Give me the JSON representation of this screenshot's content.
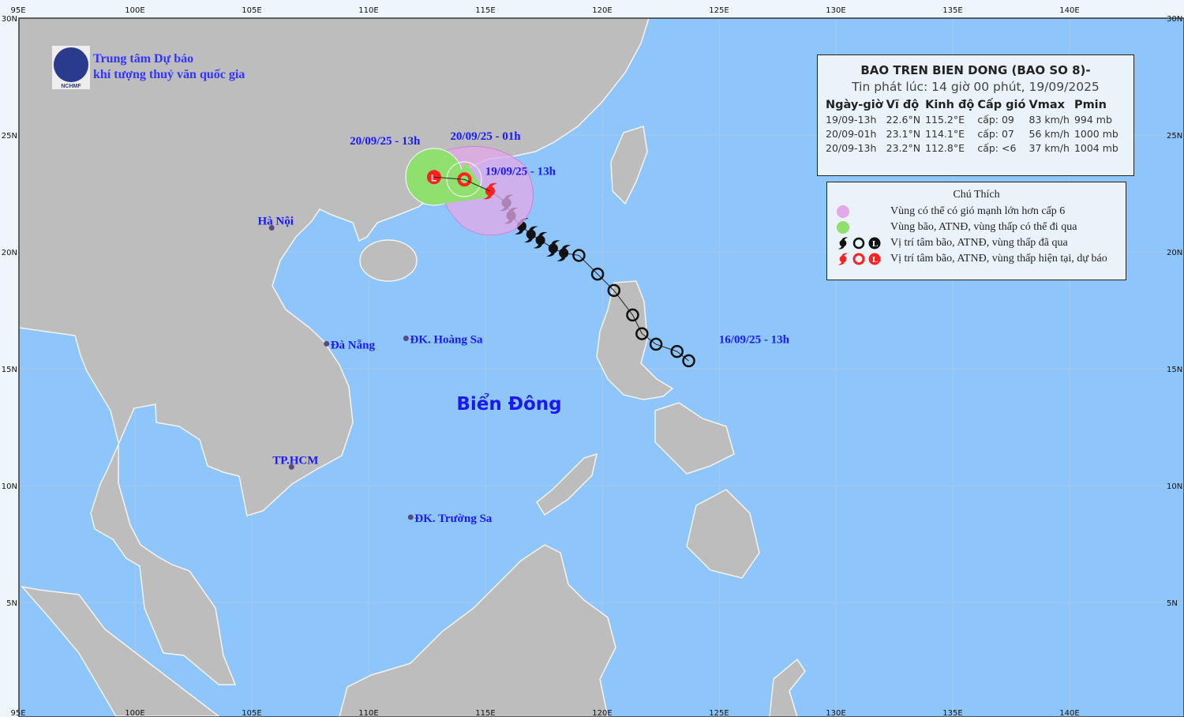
{
  "logo": {
    "line1": "Trung tâm Dự báo",
    "line2": "khí tượng thuỷ văn quốc gia",
    "mark": "NCHMF"
  },
  "axes": {
    "lon_labels": [
      "95E",
      "100E",
      "105E",
      "110E",
      "115E",
      "120E",
      "125E",
      "130E",
      "135E",
      "140E"
    ],
    "lon_values": [
      95,
      100,
      105,
      110,
      115,
      120,
      125,
      130,
      135,
      140
    ],
    "lat_labels": [
      "30N",
      "25N",
      "20N",
      "15N",
      "10N",
      "5N"
    ],
    "lat_values": [
      30,
      25,
      20,
      15,
      10,
      5
    ]
  },
  "places": [
    {
      "name": "Hà Nội",
      "lon": 105.85,
      "lat": 21.03
    },
    {
      "name": "Đà Nẵng",
      "lon": 108.2,
      "lat": 16.07
    },
    {
      "name": "ĐK. Hoàng Sa",
      "lon": 111.6,
      "lat": 16.3
    },
    {
      "name": "TP.HCM",
      "lon": 106.7,
      "lat": 10.8
    },
    {
      "name": "ĐK. Trường Sa",
      "lon": 111.8,
      "lat": 8.65
    }
  ],
  "sea_label": "Biển Đông",
  "track_labels": [
    {
      "text": "16/09/25 - 13h",
      "lon": 126.5,
      "lat": 16.1
    },
    {
      "text": "19/09/25 - 13h",
      "lon": 116.5,
      "lat": 23.3
    },
    {
      "text": "20/09/25 - 01h",
      "lon": 115.0,
      "lat": 24.8
    },
    {
      "text": "20/09/25 - 13h",
      "lon": 110.7,
      "lat": 24.6
    }
  ],
  "track": [
    {
      "lon": 123.7,
      "lat": 15.34,
      "type": "past-depression"
    },
    {
      "lon": 123.2,
      "lat": 15.74,
      "type": "past-depression"
    },
    {
      "lon": 122.3,
      "lat": 16.05,
      "type": "past-depression"
    },
    {
      "lon": 121.7,
      "lat": 16.5,
      "type": "past-depression"
    },
    {
      "lon": 121.3,
      "lat": 17.3,
      "type": "past-depression"
    },
    {
      "lon": 120.5,
      "lat": 18.35,
      "type": "past-depression"
    },
    {
      "lon": 119.8,
      "lat": 19.05,
      "type": "past-depression"
    },
    {
      "lon": 119.0,
      "lat": 19.85,
      "type": "past-depression"
    },
    {
      "lon": 118.35,
      "lat": 19.95,
      "type": "past-storm"
    },
    {
      "lon": 117.9,
      "lat": 20.15,
      "type": "past-storm"
    },
    {
      "lon": 117.35,
      "lat": 20.5,
      "type": "past-storm"
    },
    {
      "lon": 116.95,
      "lat": 20.75,
      "type": "past-storm"
    },
    {
      "lon": 116.55,
      "lat": 21.1,
      "type": "past-storm"
    },
    {
      "lon": 116.1,
      "lat": 21.55,
      "type": "past-storm"
    },
    {
      "lon": 115.9,
      "lat": 22.1,
      "type": "past-storm"
    },
    {
      "lon": 115.2,
      "lat": 22.6,
      "type": "current-storm"
    },
    {
      "lon": 114.1,
      "lat": 23.1,
      "type": "forecast-depression"
    },
    {
      "lon": 112.8,
      "lat": 23.2,
      "type": "forecast-low"
    }
  ],
  "info": {
    "title": "BAO TREN BIEN DONG (BAO SO 8)-",
    "issued": "Tin phát lúc: 14 giờ 00 phút, 19/09/2025",
    "headers": [
      "Ngày-giờ",
      "Vĩ độ",
      "Kinh độ",
      "Cấp gió",
      "Vmax",
      "Pmin"
    ],
    "rows": [
      [
        "19/09-13h",
        "22.6°N",
        "115.2°E",
        "cấp: 09",
        "83 km/h",
        "994 mb"
      ],
      [
        "20/09-01h",
        "23.1°N",
        "114.1°E",
        "cấp: 07",
        "56 km/h",
        "1000 mb"
      ],
      [
        "20/09-13h",
        "23.2°N",
        "112.8°E",
        "cấp: <6",
        "37 km/h",
        "1004 mb"
      ]
    ]
  },
  "legend": {
    "title": "Chú Thích",
    "items": [
      "Vùng có thể có gió mạnh lớn hơn cấp 6",
      "Vùng bão, ATNĐ, vùng thấp có thể đi qua",
      "Vị trí tâm bão, ATNĐ, vùng thấp đã qua",
      "Vị trí tâm bão, ATNĐ, vùng thấp hiện tại, dự báo"
    ]
  },
  "colors": {
    "sea": "#8ec5fb",
    "land": "#bdbdbd",
    "wind_zone": "#e3a8e8",
    "storm_zone": "#90e070",
    "past": "#111111",
    "current": "#ff2020"
  }
}
